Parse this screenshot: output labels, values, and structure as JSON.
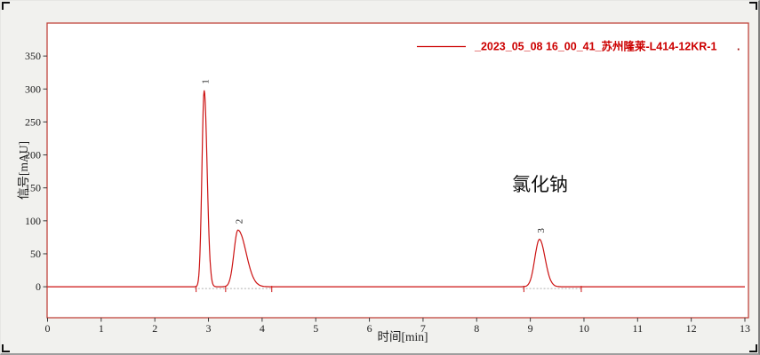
{
  "window": {
    "background": "#f1f1ee",
    "plot_background": "#ffffff",
    "frame_color": "#c0443c",
    "tick_color": "#3a3a3a",
    "tick_label_color": "#1d1d1d",
    "peak_label_color": "#222222"
  },
  "chart_data": {
    "type": "line",
    "chart_kind": "HPLC chromatogram",
    "title": "",
    "xlabel": "时间[min]",
    "ylabel": "信号[mAU]",
    "xlim": [
      0,
      13
    ],
    "ylim": [
      -47,
      400
    ],
    "x_ticks": [
      0,
      1,
      2,
      3,
      4,
      5,
      6,
      7,
      8,
      9,
      10,
      11,
      12,
      13
    ],
    "y_ticks": [
      0,
      50,
      100,
      150,
      200,
      250,
      300,
      350
    ],
    "grid": false,
    "legend_position": "top-right",
    "legend": {
      "label": "_2023_05_08 16_00_41_苏州隆莱-L414-12KR-1",
      "trailing_mark": ".",
      "color": "#cc0000"
    },
    "trace_color": "#cc1212",
    "baseline_mAU": 0,
    "peaks": [
      {
        "label": "1",
        "rt_min": 2.92,
        "height_mAU": 298,
        "sigma_left_min": 0.042,
        "sigma_right_min": 0.055
      },
      {
        "label": "2",
        "rt_min": 3.55,
        "height_mAU": 86,
        "sigma_left_min": 0.075,
        "sigma_right_min": 0.15
      },
      {
        "label": "3",
        "rt_min": 9.17,
        "height_mAU": 72,
        "sigma_left_min": 0.085,
        "sigma_right_min": 0.105
      }
    ],
    "integration": {
      "baseline_color": "#b0b0b0",
      "baseline_segments_min": [
        [
          2.74,
          4.18
        ],
        [
          8.85,
          9.95
        ]
      ],
      "tick_marks_min": [
        2.77,
        3.32,
        4.18,
        8.88,
        9.95
      ]
    },
    "annotation": {
      "text": "氯化钠",
      "x_min": 9.18,
      "y_mAU": 156
    }
  }
}
